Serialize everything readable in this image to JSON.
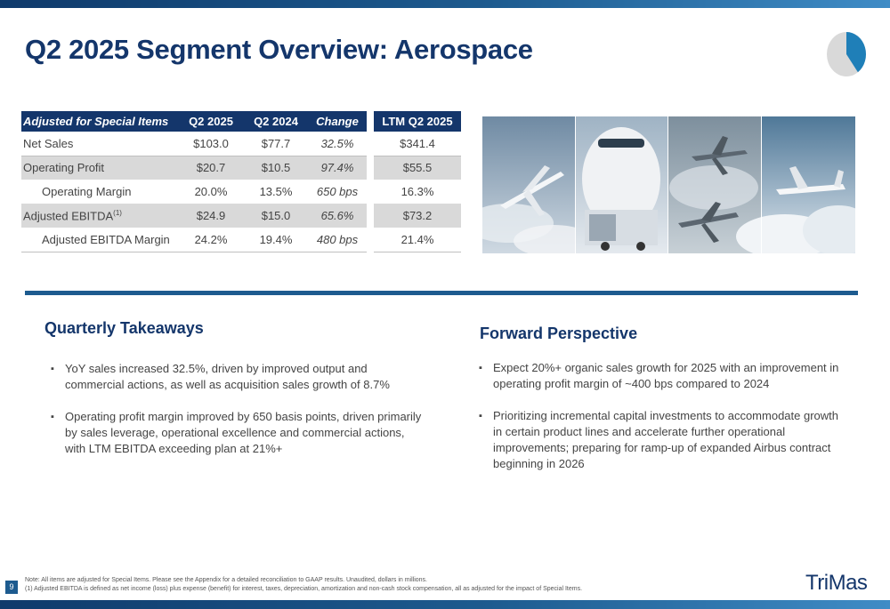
{
  "slide": {
    "title": "Q2 2025 Segment Overview: Aerospace",
    "page_number": "9"
  },
  "segment_pie": {
    "share_pct": 40,
    "accent": "#1f7fb8",
    "other": "#d9d9d9"
  },
  "table": {
    "headers": [
      "Adjusted for Special Items",
      "Q2 2025",
      "Q2 2024",
      "Change",
      "LTM Q2 2025"
    ],
    "rows": [
      {
        "label": "Net Sales",
        "q2_2025": "$103.0",
        "q2_2024": "$77.7",
        "change": "32.5%",
        "ltm": "$341.4"
      },
      {
        "label": "Operating Profit",
        "q2_2025": "$20.7",
        "q2_2024": "$10.5",
        "change": "97.4%",
        "ltm": "$55.5"
      },
      {
        "label": "Operating Margin",
        "q2_2025": "20.0%",
        "q2_2024": "13.5%",
        "change": "650 bps",
        "ltm": "16.3%"
      },
      {
        "label": "Adjusted EBITDA",
        "footnote": "(1)",
        "q2_2025": "$24.9",
        "q2_2024": "$15.0",
        "change": "65.6%",
        "ltm": "$73.2"
      },
      {
        "label": "Adjusted EBITDA Margin",
        "q2_2025": "24.2%",
        "q2_2024": "19.4%",
        "change": "480 bps",
        "ltm": "21.4%"
      }
    ]
  },
  "takeaways": {
    "title": "Quarterly Takeaways",
    "items": [
      "YoY sales increased 32.5%, driven by improved output and commercial actions, as well as acquisition sales growth of 8.7%",
      "Operating profit margin improved by 650 basis points, driven primarily by sales leverage, operational excellence and commercial actions, with LTM EBITDA exceeding plan at 21%+"
    ]
  },
  "perspective": {
    "title": "Forward Perspective",
    "items": [
      "Expect 20%+ organic sales growth for 2025 with an improvement in operating profit margin of ~400 bps compared to 2024",
      "Prioritizing incremental capital investments to accommodate growth in certain product lines and accelerate further operational improvements; preparing for ramp-up of expanded Airbus contract beginning in 2026"
    ]
  },
  "footer": {
    "note1": "Note: All items are adjusted for Special Items. Please see the Appendix for a detailed reconciliation to GAAP results. Unaudited, dollars in millions.",
    "note2": "(1)  Adjusted EBITDA is defined as net income (loss) plus expense (benefit) for interest, taxes, depreciation, amortization and non-cash stock compensation, all as adjusted for the impact of Special Items.",
    "logo_text": "TriMas"
  },
  "colors": {
    "brand_navy": "#14366b",
    "brand_blue": "#1d5b8f",
    "row_shade": "#d9d9d9"
  }
}
